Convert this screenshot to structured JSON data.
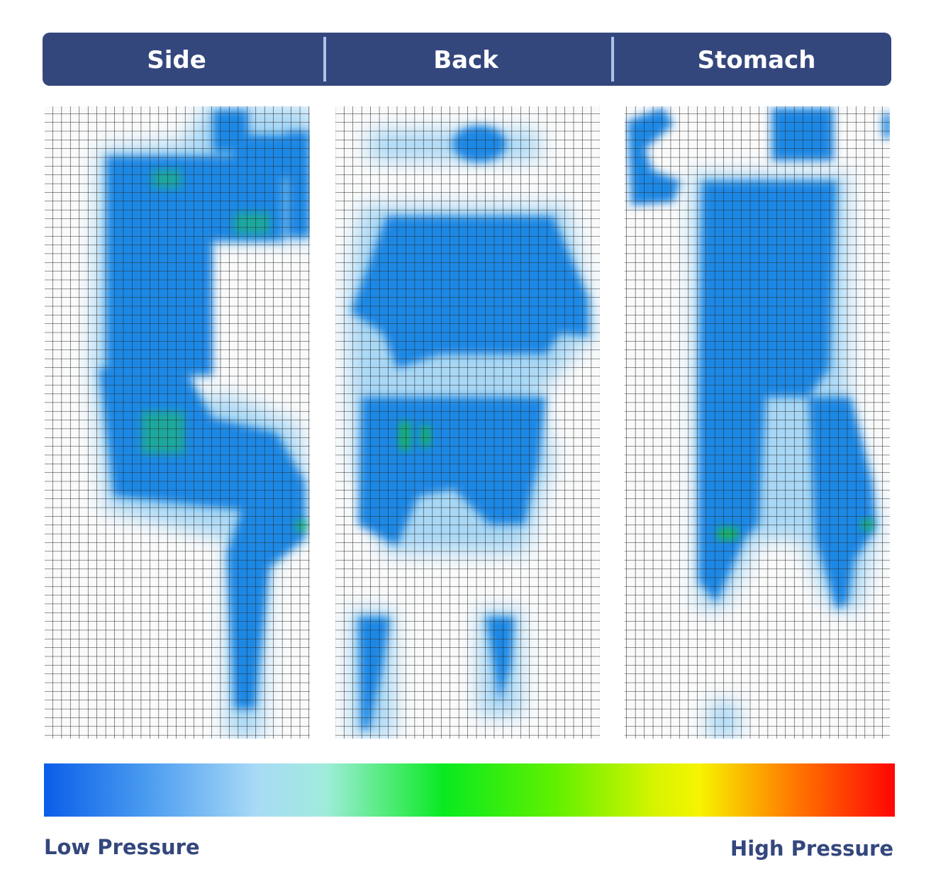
{
  "tabs": [
    "Side",
    "Back",
    "Stomach"
  ],
  "legend": {
    "low": "Low Pressure",
    "high": "High Pressure"
  }
}
